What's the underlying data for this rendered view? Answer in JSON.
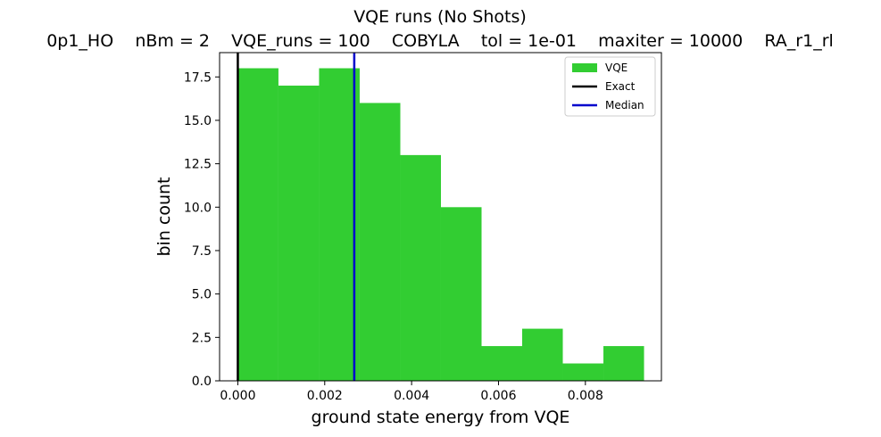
{
  "chart_data": {
    "type": "bar",
    "title": "VQE runs (No Shots)",
    "subtitle": "0p1_HO    nBm = 2    VQE_runs = 100    COBYLA    tol = 1e-01    maxiter = 10000    RA_r1_rl",
    "xlabel": "ground state energy from VQE",
    "ylabel": "bin count",
    "xlim": [
      -0.00042,
      0.00975
    ],
    "ylim": [
      0,
      18.9
    ],
    "x_ticks": [
      0.0,
      0.002,
      0.004,
      0.006,
      0.008
    ],
    "x_tick_labels": [
      "0.000",
      "0.002",
      "0.004",
      "0.006",
      "0.008"
    ],
    "y_ticks": [
      0.0,
      2.5,
      5.0,
      7.5,
      10.0,
      12.5,
      15.0,
      17.5
    ],
    "y_tick_labels": [
      "0.0",
      "2.5",
      "5.0",
      "7.5",
      "10.0",
      "12.5",
      "15.0",
      "17.5"
    ],
    "bin_edges": [
      0.0,
      0.000935,
      0.00187,
      0.002805,
      0.00374,
      0.004675,
      0.00561,
      0.006545,
      0.00748,
      0.008415,
      0.00935
    ],
    "values": [
      18,
      17,
      18,
      16,
      13,
      10,
      2,
      3,
      1,
      2
    ],
    "series": [
      {
        "name": "VQE",
        "kind": "histogram",
        "color": "#32cd32"
      },
      {
        "name": "Exact",
        "kind": "vline",
        "x": 0.0,
        "color": "#000000"
      },
      {
        "name": "Median",
        "kind": "vline",
        "x": 0.00268,
        "color": "#0000cd"
      }
    ],
    "legend_position": "top-right",
    "grid": false
  }
}
